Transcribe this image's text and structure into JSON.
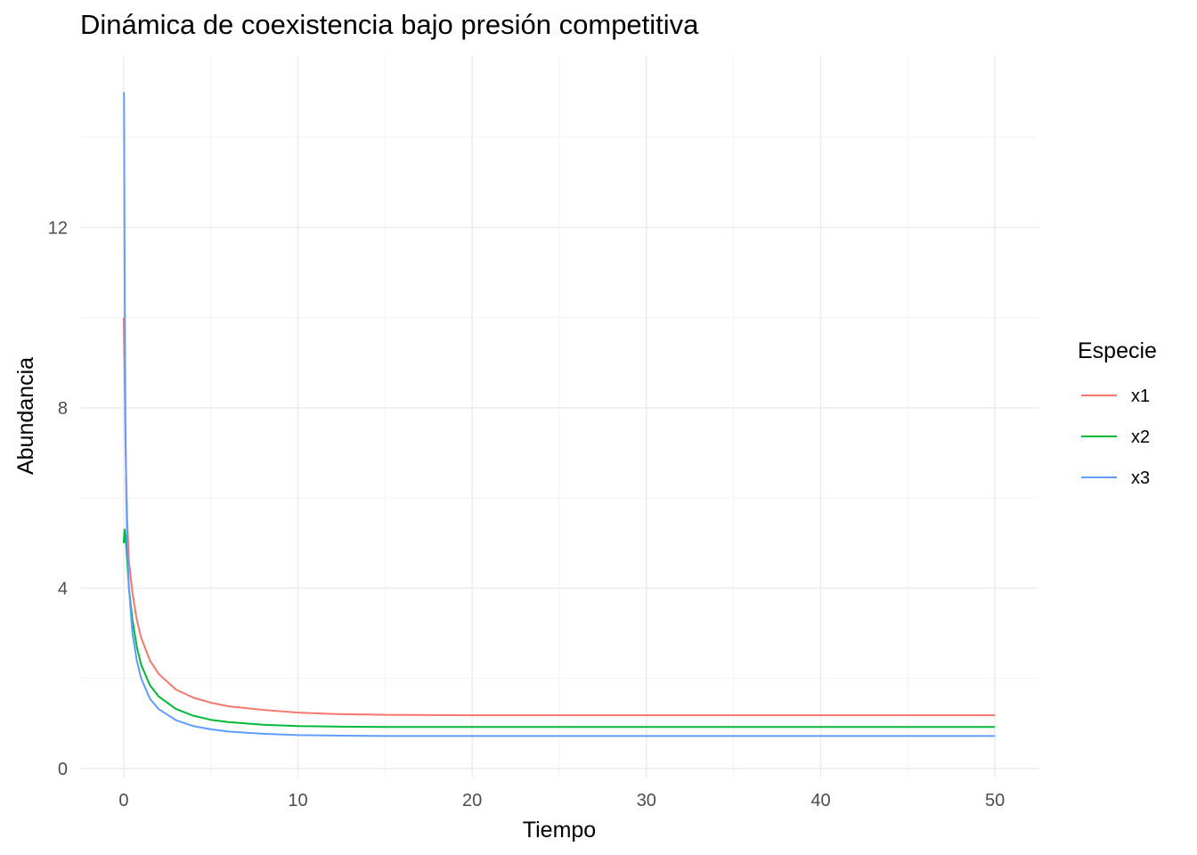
{
  "chart_data": {
    "type": "line",
    "title": "Dinámica de coexistencia bajo presión competitiva",
    "xlabel": "Tiempo",
    "ylabel": "Abundancia",
    "xlim": [
      -2.5,
      52.5
    ],
    "ylim": [
      -0.2,
      15.8
    ],
    "x_ticks": [
      0,
      10,
      20,
      30,
      40,
      50
    ],
    "y_ticks": [
      0,
      4,
      8,
      12
    ],
    "grid": true,
    "legend": {
      "title": "Especie",
      "placement": "right"
    },
    "series": [
      {
        "name": "x1",
        "color": "#F8766D",
        "x": [
          0,
          0.05,
          0.1,
          0.15,
          0.2,
          0.3,
          0.5,
          0.75,
          1,
          1.5,
          2,
          3,
          4,
          5,
          6,
          8,
          10,
          12,
          15,
          20,
          30,
          40,
          50
        ],
        "y": [
          10.0,
          8.8,
          7.3,
          6.3,
          5.5,
          4.6,
          3.9,
          3.3,
          2.9,
          2.4,
          2.1,
          1.75,
          1.57,
          1.46,
          1.38,
          1.3,
          1.24,
          1.21,
          1.19,
          1.18,
          1.18,
          1.18,
          1.18
        ]
      },
      {
        "name": "x2",
        "color": "#00BA38",
        "x": [
          0,
          0.05,
          0.1,
          0.15,
          0.2,
          0.3,
          0.5,
          0.75,
          1,
          1.5,
          2,
          3,
          4,
          5,
          6,
          8,
          10,
          12,
          15,
          20,
          30,
          40,
          50
        ],
        "y": [
          5.0,
          5.3,
          5.1,
          4.9,
          4.6,
          4.0,
          3.3,
          2.7,
          2.3,
          1.85,
          1.6,
          1.32,
          1.17,
          1.08,
          1.03,
          0.97,
          0.94,
          0.93,
          0.92,
          0.92,
          0.92,
          0.92,
          0.92
        ]
      },
      {
        "name": "x3",
        "color": "#619CFF",
        "x": [
          0,
          0.02,
          0.05,
          0.08,
          0.1,
          0.15,
          0.2,
          0.3,
          0.5,
          0.75,
          1,
          1.5,
          2,
          3,
          4,
          5,
          6,
          8,
          10,
          12,
          15,
          20,
          30,
          40,
          50
        ],
        "y": [
          15.0,
          14.9,
          11.3,
          9.0,
          7.7,
          6.0,
          5.0,
          4.0,
          3.0,
          2.4,
          2.0,
          1.55,
          1.32,
          1.07,
          0.94,
          0.87,
          0.82,
          0.77,
          0.74,
          0.73,
          0.72,
          0.72,
          0.72,
          0.72,
          0.72
        ]
      }
    ]
  }
}
